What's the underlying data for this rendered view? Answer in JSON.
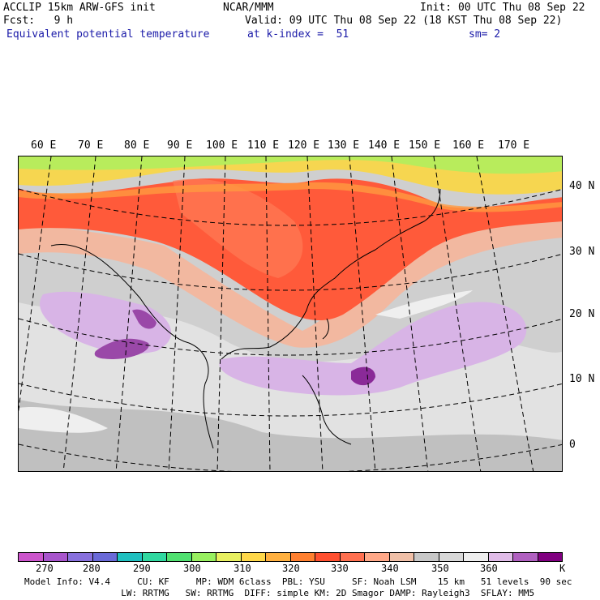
{
  "header": {
    "model": "ACCLIP 15km ARW-GFS init",
    "center": "NCAR/MMM",
    "init": "Init: 00 UTC Thu 08 Sep 22",
    "fcst": "Fcst:   9 h",
    "valid": "Valid: 09 UTC Thu 08 Sep 22 (18 KST Thu 08 Sep 22)",
    "field": "Equivalent potential temperature",
    "level": "at k-index =  51",
    "smooth": "sm= 2"
  },
  "map": {
    "lon_labels": [
      "60 E",
      "70 E",
      "80 E",
      "90 E",
      "100 E",
      "110 E",
      "120 E",
      "130 E",
      "140 E",
      "150 E",
      "160 E",
      "170 E"
    ],
    "lat_labels": [
      "40 N",
      "30 N",
      "20 N",
      "10 N",
      "0"
    ]
  },
  "colorbar": {
    "colors": [
      "#cc55cc",
      "#a855cc",
      "#8870dd",
      "#6a6ad8",
      "#20c0c0",
      "#30d8a0",
      "#50e070",
      "#98f060",
      "#e8f060",
      "#ffd84a",
      "#ffb040",
      "#ff8030",
      "#ff5030",
      "#ff7050",
      "#ffa888",
      "#f0c0a8",
      "#c8c8c8",
      "#d8d8d8",
      "#eeeeee",
      "#e0bce8",
      "#b060c0",
      "#800080"
    ],
    "labels": [
      "270",
      "280",
      "290",
      "300",
      "310",
      "320",
      "330",
      "340",
      "350",
      "360"
    ],
    "unit": "K"
  },
  "footer": {
    "line1": "Model Info: V4.4     CU: KF     MP: WDM 6class  PBL: YSU     SF: Noah LSM    15 km   51 levels  90 sec",
    "line2": "                  LW: RRTMG   SW: RRTMG  DIFF: simple KM: 2D Smagor DAMP: Rayleigh3  SFLAY: MM5"
  }
}
